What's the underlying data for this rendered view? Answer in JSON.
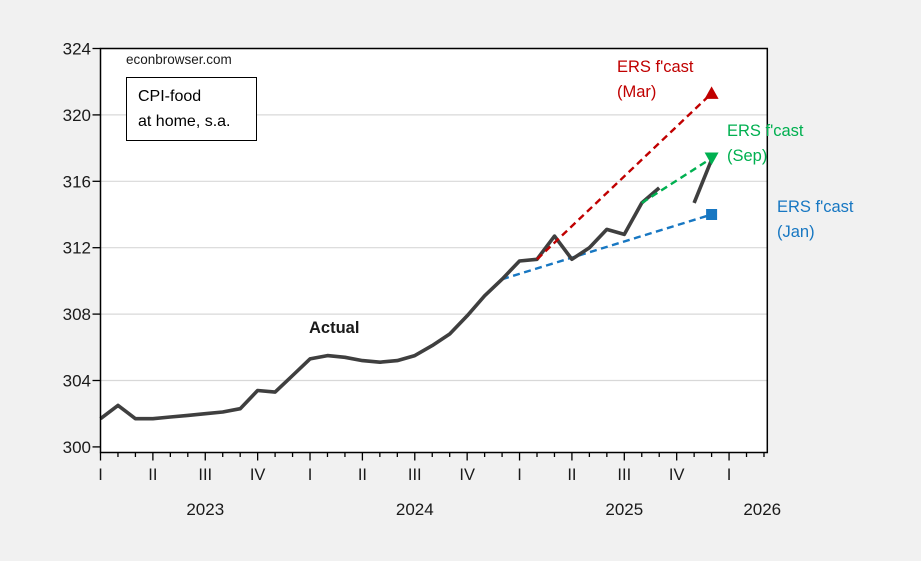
{
  "watermark": "econbrowser.com",
  "title_box": {
    "line1": "CPI-food",
    "line2": "at home, s.a."
  },
  "colors": {
    "background": "#f1f1f1",
    "plot_background": "#ffffff",
    "plot_border": "#000000",
    "gridline": "#d8d8d8",
    "actual": "#3f3f3f",
    "fcast_jan": "#1777c2",
    "fcast_mar": "#c00000",
    "fcast_sep": "#00b050",
    "text": "#1a1a1a"
  },
  "chart_data": {
    "type": "line",
    "title": "CPI-food at home, s.a.",
    "x_start": "2023-01",
    "x_unit": "month",
    "grid": "horizontal-only",
    "ylim": [
      300,
      324
    ],
    "y_ticks": [
      300,
      304,
      308,
      312,
      316,
      320,
      324
    ],
    "x_quarter_labels": [
      {
        "m": 0,
        "label": "I"
      },
      {
        "m": 3,
        "label": "II"
      },
      {
        "m": 6,
        "label": "III"
      },
      {
        "m": 9,
        "label": "IV"
      },
      {
        "m": 12,
        "label": "I"
      },
      {
        "m": 15,
        "label": "II"
      },
      {
        "m": 18,
        "label": "III"
      },
      {
        "m": 21,
        "label": "IV"
      },
      {
        "m": 24,
        "label": "I"
      },
      {
        "m": 27,
        "label": "II"
      },
      {
        "m": 30,
        "label": "III"
      },
      {
        "m": 33,
        "label": "IV"
      },
      {
        "m": 36,
        "label": "I"
      }
    ],
    "x_year_labels": [
      {
        "label": "2023",
        "center_m": 6
      },
      {
        "label": "2024",
        "center_m": 18
      },
      {
        "label": "2025",
        "center_m": 30
      },
      {
        "label": "2026",
        "center_m": 37.9
      }
    ],
    "minor_tick_months": 39,
    "series": [
      {
        "name": "Actual",
        "style": "solid",
        "color_key": "actual",
        "note": "monthly values Jan 2023 - Dec 2025, null = Oct 2025 not published",
        "values": [
          301.7,
          302.5,
          301.7,
          301.7,
          301.8,
          301.9,
          302.0,
          302.1,
          302.3,
          303.4,
          303.3,
          304.3,
          305.3,
          305.5,
          305.4,
          305.2,
          305.1,
          305.2,
          305.5,
          306.1,
          306.8,
          307.9,
          309.1,
          310.1,
          311.2,
          311.3,
          312.7,
          311.3,
          312.0,
          313.1,
          312.8,
          314.7,
          315.6,
          null,
          314.7,
          317.3
        ]
      },
      {
        "name": "ERS f'cast (Jan)",
        "style": "dashed",
        "color_key": "fcast_jan",
        "marker": "square",
        "points": [
          {
            "m": 23,
            "v": 310.1
          },
          {
            "m": 35,
            "v": 314.0
          }
        ]
      },
      {
        "name": "ERS f'cast (Mar)",
        "style": "dashed",
        "color_key": "fcast_mar",
        "marker": "triangle-up",
        "points": [
          {
            "m": 25,
            "v": 311.3
          },
          {
            "m": 35,
            "v": 321.3
          }
        ]
      },
      {
        "name": "ERS f'cast (Sep)",
        "style": "dashed",
        "color_key": "fcast_sep",
        "marker": "triangle-down",
        "points": [
          {
            "m": 31,
            "v": 314.7
          },
          {
            "m": 35,
            "v": 317.4
          }
        ]
      }
    ],
    "annotations": {
      "actual_label": "Actual",
      "fcast_labels": [
        {
          "id": "mar",
          "line1": "ERS f'cast",
          "line2": "(Mar)",
          "color_key": "fcast_mar"
        },
        {
          "id": "sep",
          "line1": "ERS f'cast",
          "line2": "(Sep)",
          "color_key": "fcast_sep"
        },
        {
          "id": "jan",
          "line1": "ERS f'cast",
          "line2": "(Jan)",
          "color_key": "fcast_jan"
        }
      ]
    }
  }
}
